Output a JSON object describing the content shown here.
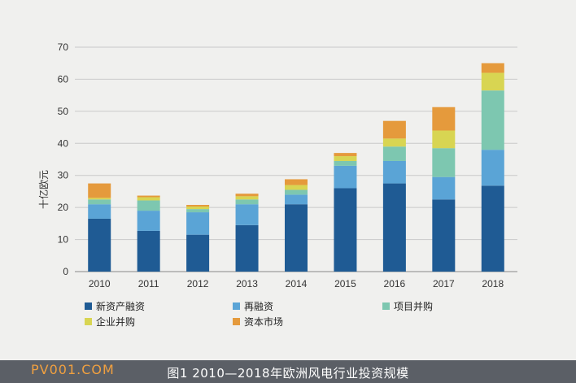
{
  "chart_data": {
    "type": "bar",
    "stacked": true,
    "ylabel": "十亿欧元",
    "ylim": [
      0,
      70
    ],
    "yticks": [
      0,
      10,
      20,
      30,
      40,
      50,
      60,
      70
    ],
    "grid": true,
    "legend_position": "bottom",
    "categories": [
      "2010",
      "2011",
      "2012",
      "2013",
      "2014",
      "2015",
      "2016",
      "2017",
      "2018"
    ],
    "series": [
      {
        "name": "新资产融资",
        "color": "#1f5b94",
        "values": [
          16.5,
          12.7,
          11.5,
          14.5,
          21.0,
          26.0,
          27.5,
          22.5,
          26.8
        ]
      },
      {
        "name": "再融资",
        "color": "#5aa4d6",
        "values": [
          4.5,
          6.3,
          7.0,
          6.5,
          3.0,
          7.0,
          7.0,
          7.0,
          11.2
        ]
      },
      {
        "name": "项目并购",
        "color": "#7dc7b0",
        "values": [
          1.5,
          3.2,
          1.0,
          1.5,
          1.5,
          1.5,
          4.5,
          9.0,
          18.5
        ]
      },
      {
        "name": "企业并购",
        "color": "#d8d552",
        "values": [
          0.5,
          1.0,
          0.8,
          1.0,
          1.5,
          1.5,
          2.5,
          5.5,
          5.5
        ]
      },
      {
        "name": "资本市场",
        "color": "#e59a3c",
        "values": [
          4.5,
          0.5,
          0.5,
          0.8,
          1.8,
          1.0,
          5.5,
          7.3,
          3.0
        ]
      }
    ]
  },
  "caption": "图1  2010—2018年欧洲风电行业投资规模",
  "watermark": "PV001.COM"
}
